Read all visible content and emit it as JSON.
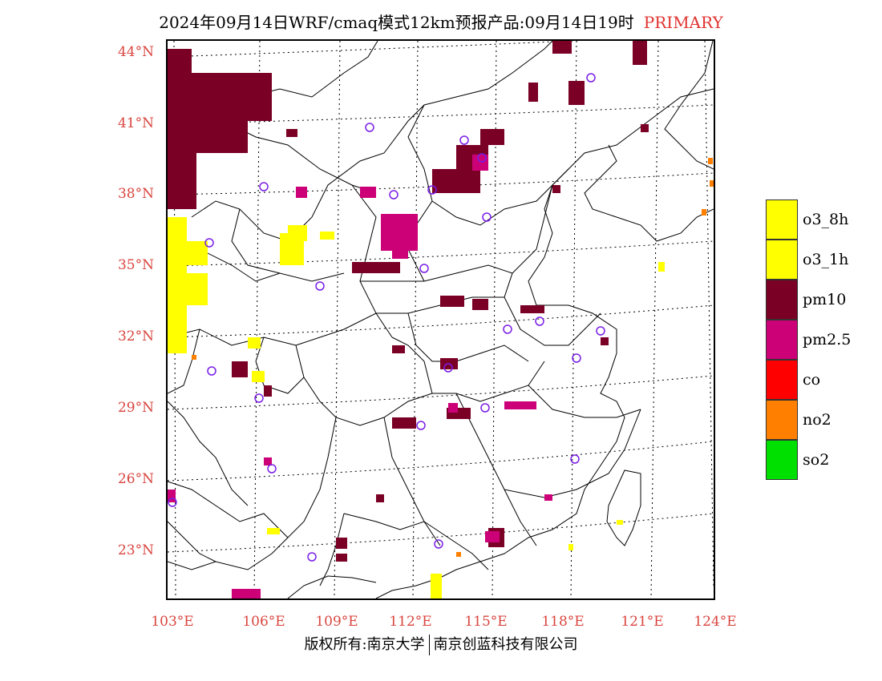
{
  "header": {
    "title": "2024年09月14日WRF/cmaq模式12km预报产品:09月14日19时",
    "mode": "PRIMARY"
  },
  "map": {
    "lat_labels": [
      "44°N",
      "41°N",
      "38°N",
      "35°N",
      "32°N",
      "29°N",
      "26°N",
      "23°N"
    ],
    "lon_labels": [
      "103°E",
      "106°E",
      "109°E",
      "112°E",
      "115°E",
      "118°E",
      "121°E",
      "124°E"
    ],
    "colors": {
      "o3_8h": "#ffff00",
      "o3_1h": "#ffff00",
      "pm10": "#7a0026",
      "pm25": "#cc0077",
      "co": "#ff0000",
      "no2": "#ff7f00",
      "so2": "#00e000",
      "station": "#7a1ee6",
      "border": "#000000",
      "grid": "#000000"
    }
  },
  "legend": {
    "items": [
      {
        "label": "o3_8h",
        "color": "#ffff00"
      },
      {
        "label": "o3_1h",
        "color": "#ffff00"
      },
      {
        "label": "pm10",
        "color": "#7a0026"
      },
      {
        "label": "pm2.5",
        "color": "#cc0077"
      },
      {
        "label": "co",
        "color": "#ff0000"
      },
      {
        "label": "no2",
        "color": "#ff7f00"
      },
      {
        "label": "so2",
        "color": "#00e000"
      }
    ]
  },
  "footer": {
    "left": "版权所有:南京大学",
    "right": "南京创蓝科技有限公司"
  }
}
